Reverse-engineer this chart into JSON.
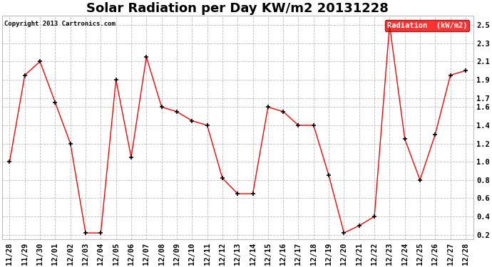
{
  "title": "Solar Radiation per Day KW/m2 20131228",
  "copyright_text": "Copyright 2013 Cartronics.com",
  "legend_label": "Radiation  (kW/m2)",
  "dates": [
    "11/28",
    "11/29",
    "11/30",
    "12/01",
    "12/02",
    "12/03",
    "12/04",
    "12/05",
    "12/06",
    "12/07",
    "12/08",
    "12/09",
    "12/10",
    "12/11",
    "12/12",
    "12/13",
    "12/14",
    "12/15",
    "12/16",
    "12/17",
    "12/18",
    "12/19",
    "12/20",
    "12/21",
    "12/22",
    "12/23",
    "12/24",
    "12/25",
    "12/26",
    "12/27",
    "12/28"
  ],
  "values": [
    1.0,
    1.95,
    2.1,
    1.65,
    1.2,
    0.22,
    0.22,
    1.9,
    1.05,
    2.15,
    1.6,
    1.55,
    1.45,
    1.4,
    0.82,
    0.65,
    0.65,
    1.6,
    1.55,
    1.4,
    1.4,
    0.85,
    0.22,
    0.3,
    0.4,
    2.5,
    1.25,
    0.8,
    1.3,
    1.95,
    2.0
  ],
  "line_color": "red",
  "marker_color": "black",
  "marker": "+",
  "background_color": "#ffffff",
  "grid_color": "#bbbbbb",
  "ylim": [
    0.15,
    2.6
  ],
  "yticks": [
    0.2,
    0.4,
    0.6,
    0.8,
    1.0,
    1.2,
    1.4,
    1.6,
    1.7,
    1.9,
    2.1,
    2.3,
    2.5
  ],
  "title_fontsize": 13,
  "tick_fontsize": 7.5,
  "legend_bg": "red",
  "legend_text_color": "white"
}
